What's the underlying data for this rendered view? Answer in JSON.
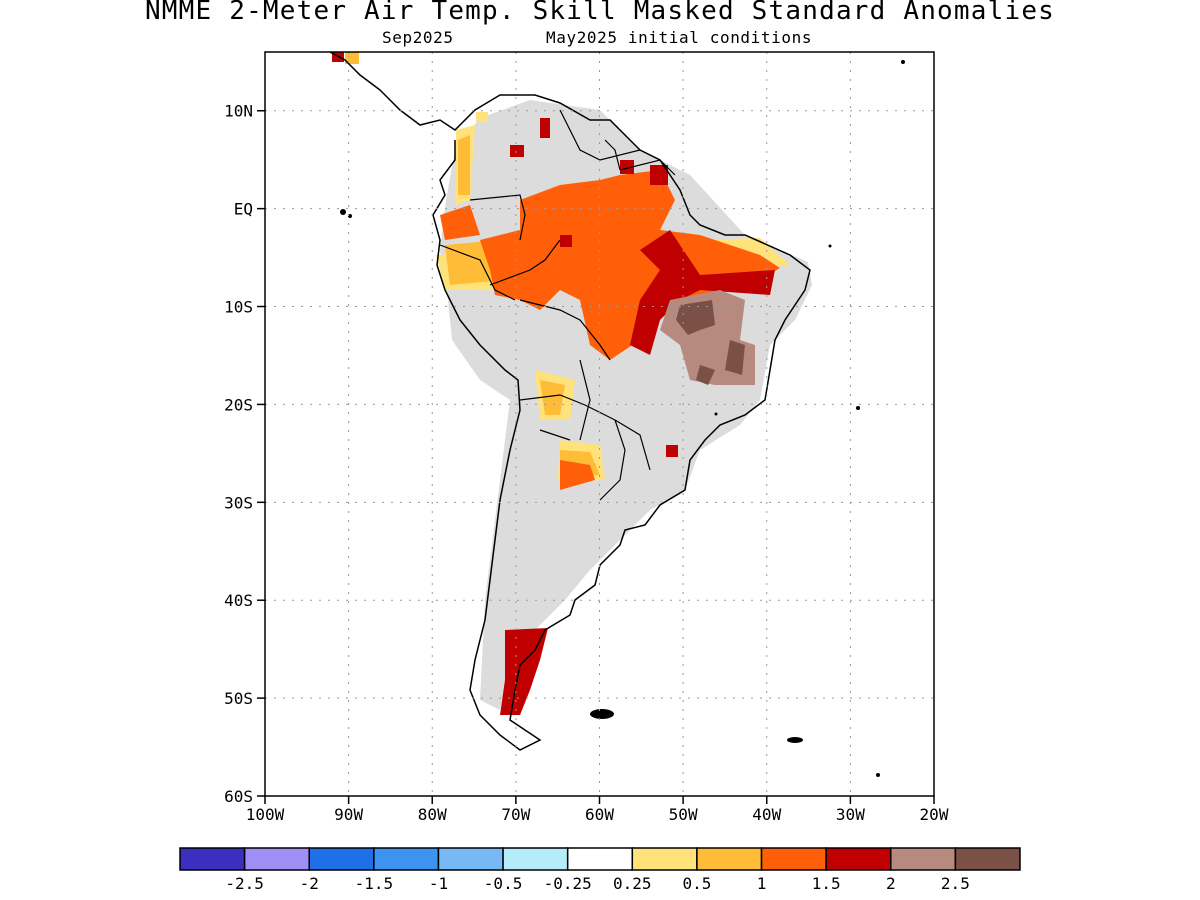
{
  "map": {
    "title": "NMME 2-Meter Air Temp. Skill Masked Standard Anomalies",
    "target_month": "Sep2025",
    "initial_conditions": "May2025 initial conditions",
    "lat_ticks": [
      "10N",
      "EQ",
      "10S",
      "20S",
      "30S",
      "40S",
      "50S",
      "60S"
    ],
    "lon_ticks": [
      "100W",
      "90W",
      "80W",
      "70W",
      "60W",
      "50W",
      "40W",
      "30W",
      "20W"
    ],
    "extent": {
      "lon_min": -100,
      "lon_max": -20,
      "lat_min": -60,
      "lat_max": 16
    },
    "grid": "dotted"
  },
  "legend": {
    "labels": [
      "-2.5",
      "-2",
      "-1.5",
      "-1",
      "-0.5",
      "-0.25",
      "0.25",
      "0.5",
      "1",
      "1.5",
      "2",
      "2.5"
    ],
    "colors": [
      "#3b2fbf",
      "#9f8ff5",
      "#1f6fe8",
      "#3d94f0",
      "#78b8f5",
      "#b4ecfa",
      "#ffffff",
      "#ffe27a",
      "#ffbd37",
      "#ff5f08",
      "#c00000",
      "#b68a7f",
      "#7b5046"
    ]
  },
  "colors": {
    "masked": "#dcdcdc",
    "coast": "#000000"
  }
}
